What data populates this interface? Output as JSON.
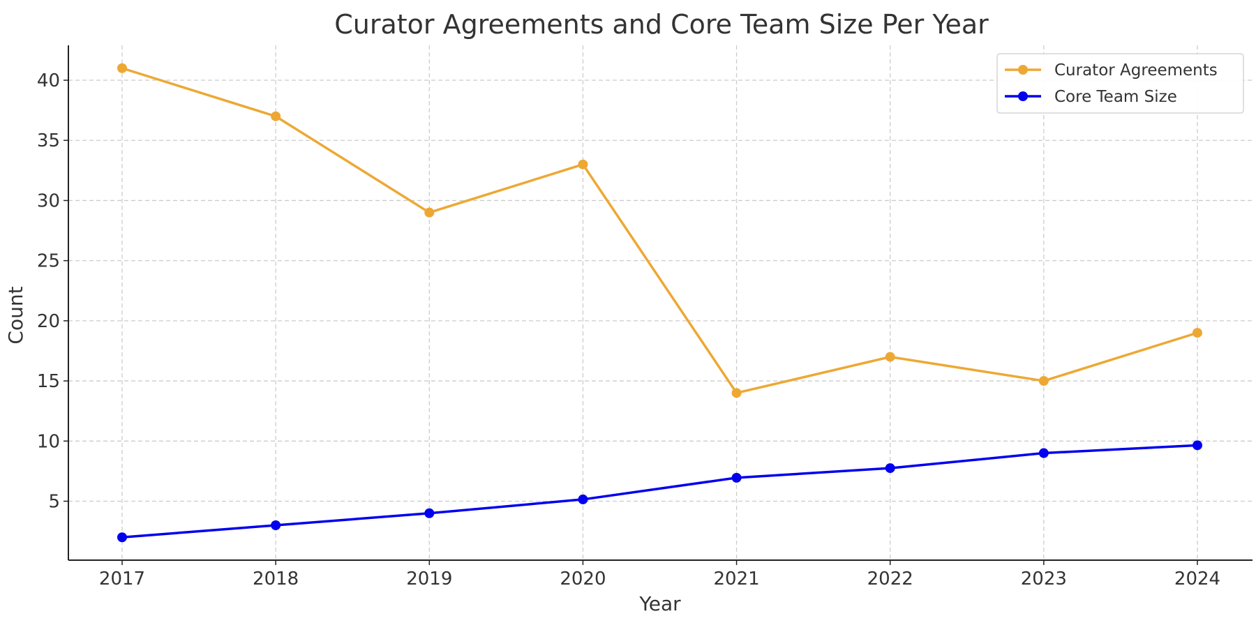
{
  "chart_data": {
    "type": "line",
    "title": "Curator Agreements and Core Team Size Per Year",
    "xlabel": "Year",
    "ylabel": "Count",
    "x": [
      2017,
      2018,
      2019,
      2020,
      2021,
      2022,
      2023,
      2024
    ],
    "x_tick_labels": [
      "2017",
      "2018",
      "2019",
      "2020",
      "2021",
      "2022",
      "2023",
      "2024"
    ],
    "y_ticks": [
      5,
      10,
      15,
      20,
      25,
      30,
      35,
      40
    ],
    "y_tick_labels": [
      "5",
      "10",
      "15",
      "20",
      "25",
      "30",
      "35",
      "40"
    ],
    "ylim": [
      0.1,
      42.9
    ],
    "grid": true,
    "legend_position": "top-right",
    "series": [
      {
        "name": "Curator Agreements",
        "color": "#EDA834",
        "values": [
          41,
          37,
          29,
          33,
          14,
          17,
          15,
          19
        ]
      },
      {
        "name": "Core Team Size",
        "color": "#0000EE",
        "values": [
          2,
          3,
          4,
          5.15,
          6.95,
          7.75,
          9,
          9.65
        ]
      }
    ]
  }
}
